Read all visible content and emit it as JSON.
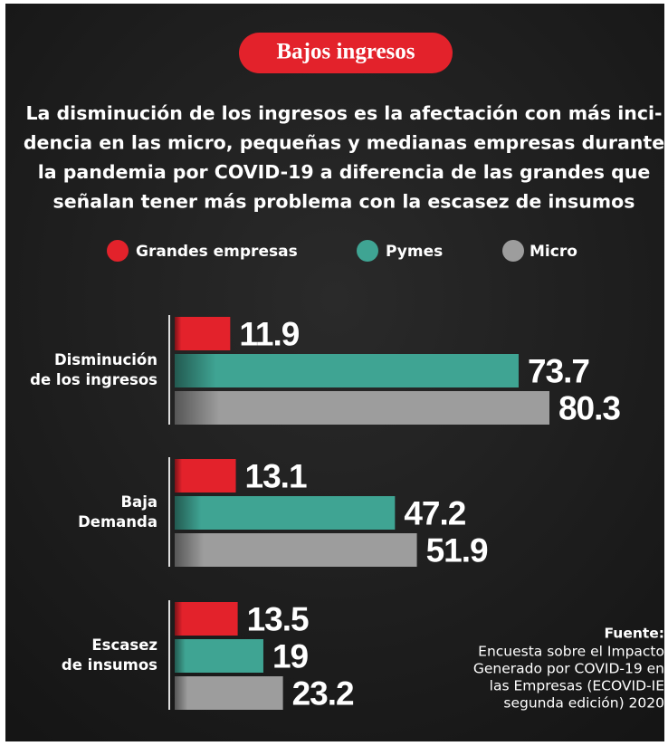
{
  "chart_data": {
    "type": "bar",
    "orientation": "horizontal",
    "title": "Bajos ingresos",
    "subtitle": [
      "La disminución de los ingresos es la afectación con más inci-",
      "dencia en las micro, pequeñas y medianas empresas durante",
      "la pandemia por COVID-19 a diferencia de las grandes que",
      "señalan tener más problema con la escasez de insumos"
    ],
    "categories": [
      [
        "Disminución",
        "de los ingresos"
      ],
      [
        "Baja",
        "Demanda"
      ],
      [
        "Escasez",
        "de insumos"
      ]
    ],
    "series": [
      {
        "name": "Grandes empresas",
        "color": "#e3222b",
        "values": [
          11.9,
          13.1,
          13.5
        ]
      },
      {
        "name": "Pymes",
        "color": "#3fa493",
        "values": [
          73.7,
          47.2,
          19
        ]
      },
      {
        "name": "Micro",
        "color": "#9d9d9d",
        "values": [
          80.3,
          51.9,
          23.2
        ]
      }
    ],
    "xlim": [
      0,
      90
    ],
    "source": {
      "label": "Fuente:",
      "lines": [
        "Encuesta sobre el Impacto",
        "Generado por COVID-19 en",
        "las Empresas (ECOVID-IE",
        "segunda edición) 2020"
      ]
    }
  }
}
